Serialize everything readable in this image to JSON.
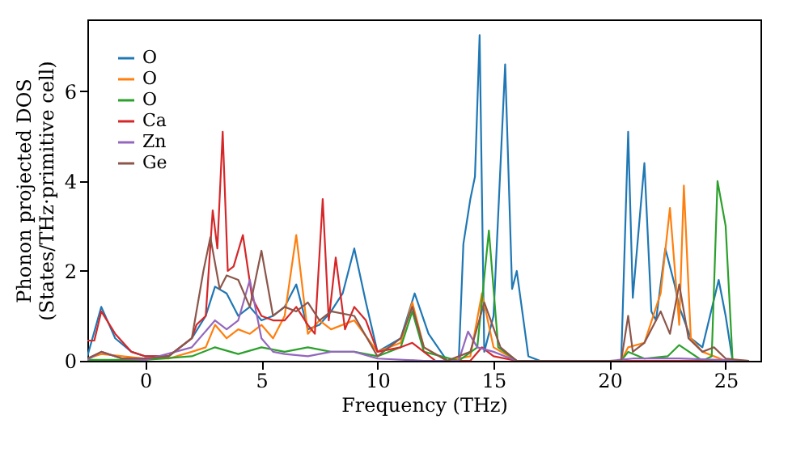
{
  "chart_data": {
    "type": "line",
    "xlabel": "Frequency (THz)",
    "ylabel": "Phonon projected DOS\n(States/THz·primitive cell)",
    "xlim": [
      -2.5,
      26.5
    ],
    "ylim": [
      0,
      7.6
    ],
    "xticks": [
      0,
      5,
      10,
      15,
      20,
      25
    ],
    "yticks": [
      0,
      2,
      4,
      6
    ],
    "legend": "top left",
    "grid": false,
    "series": [
      {
        "name": "O",
        "color": "#1f77b4",
        "x": [
          -2.5,
          -1.9,
          -1.3,
          -0.6,
          0,
          1,
          2,
          2.6,
          3,
          3.5,
          4,
          4.5,
          5,
          5.5,
          6,
          6.5,
          7,
          7.5,
          8,
          8.5,
          9,
          9.5,
          10,
          11,
          11.6,
          12.2,
          13,
          13.5,
          13.7,
          14,
          14.2,
          14.4,
          14.6,
          15,
          15.5,
          15.8,
          16,
          16.5,
          17,
          20.5,
          20.8,
          21,
          21.5,
          21.8,
          22,
          22.4,
          22.8,
          23,
          23.5,
          24,
          24.7,
          25,
          25.3,
          26
        ],
        "values": [
          0.1,
          1.2,
          0.5,
          0.2,
          0.1,
          0.1,
          0.5,
          1.0,
          1.65,
          1.5,
          1.0,
          1.2,
          0.9,
          1.0,
          1.2,
          1.7,
          0.7,
          0.8,
          1.1,
          1.5,
          2.5,
          1.3,
          0.2,
          0.5,
          1.5,
          0.6,
          0,
          0,
          2.6,
          3.6,
          4.1,
          7.25,
          0.2,
          1.0,
          6.6,
          1.6,
          2.0,
          0.1,
          0,
          0,
          5.1,
          1.4,
          4.4,
          1.1,
          0.9,
          2.5,
          1.7,
          1.2,
          0.5,
          0.3,
          1.8,
          1.0,
          0,
          0
        ]
      },
      {
        "name": "O",
        "color": "#ff7f0e",
        "x": [
          -2.5,
          -1.9,
          0,
          1,
          2,
          2.6,
          3,
          3.5,
          4,
          4.5,
          5,
          5.5,
          6,
          6.5,
          7,
          7.5,
          8,
          9,
          10,
          11,
          11.5,
          12,
          13,
          14,
          14.5,
          15,
          16,
          20.5,
          20.8,
          21.5,
          22.2,
          22.6,
          23,
          23.2,
          23.5,
          24,
          25,
          26
        ],
        "values": [
          0.05,
          0.15,
          0.05,
          0.05,
          0.2,
          0.3,
          0.8,
          0.5,
          0.7,
          0.6,
          0.8,
          0.5,
          1.0,
          2.8,
          0.6,
          0.9,
          0.7,
          0.9,
          0.2,
          0.4,
          1.3,
          0.3,
          0,
          0.1,
          1.5,
          0.3,
          0,
          0,
          0.3,
          0.4,
          1.5,
          3.4,
          0.8,
          3.9,
          0.5,
          0.2,
          0,
          0
        ]
      },
      {
        "name": "O",
        "color": "#2ca02c",
        "x": [
          -2.5,
          0,
          2,
          3,
          4,
          5,
          6,
          7,
          8,
          9,
          10,
          11,
          11.5,
          12,
          13.5,
          14.3,
          14.8,
          15.2,
          16,
          20.5,
          20.8,
          21.5,
          22.5,
          23,
          24,
          24.4,
          24.65,
          25,
          25.3,
          26
        ],
        "values": [
          0.02,
          0.02,
          0.1,
          0.3,
          0.15,
          0.3,
          0.2,
          0.3,
          0.2,
          0.2,
          0.1,
          0.3,
          1.1,
          0.2,
          0,
          0.3,
          2.9,
          0.3,
          0,
          0,
          0.2,
          0.05,
          0.1,
          0.35,
          0,
          0.1,
          4.0,
          3.0,
          0,
          0
        ]
      },
      {
        "name": "Ca",
        "color": "#d62728",
        "x": [
          -2.5,
          -2.2,
          -1.9,
          -1.3,
          -0.6,
          0,
          1,
          2,
          2.2,
          2.6,
          2.9,
          3.1,
          3.33,
          3.55,
          3.8,
          4.2,
          4.6,
          5,
          5.5,
          6,
          6.5,
          7,
          7.3,
          7.64,
          7.9,
          8.2,
          8.6,
          9,
          9.5,
          10,
          11,
          11.5,
          12.5,
          14,
          14.5,
          15,
          16,
          26
        ],
        "values": [
          0.45,
          0.45,
          1.1,
          0.6,
          0.2,
          0.1,
          0.1,
          0.5,
          0.8,
          1.0,
          3.35,
          2.5,
          5.1,
          2.0,
          2.1,
          2.8,
          1.4,
          1.0,
          0.9,
          0.9,
          1.2,
          0.8,
          0.6,
          3.6,
          0.9,
          2.3,
          0.7,
          1.2,
          0.9,
          0.2,
          0.3,
          0.4,
          0,
          0,
          0.3,
          0.1,
          0,
          0
        ]
      },
      {
        "name": "Zn",
        "color": "#9467bd",
        "x": [
          -2.5,
          -1.9,
          -1,
          0,
          2,
          3,
          3.5,
          4,
          4.5,
          5,
          5.5,
          6,
          7,
          8,
          9,
          10,
          12,
          13.5,
          13.9,
          14.3,
          15,
          15.5,
          16,
          20,
          21,
          23,
          26
        ],
        "values": [
          0.02,
          0.2,
          0.05,
          0.02,
          0.3,
          0.9,
          0.7,
          0.9,
          1.8,
          0.5,
          0.2,
          0.15,
          0.1,
          0.2,
          0.2,
          0.05,
          0,
          0,
          0.65,
          0.3,
          0.2,
          0.1,
          0,
          0,
          0.05,
          0.05,
          0
        ]
      },
      {
        "name": "Ge",
        "color": "#8c564b",
        "x": [
          -2.5,
          -1.9,
          -1,
          0,
          1,
          2,
          2.5,
          2.8,
          3.2,
          3.5,
          4,
          4.5,
          5,
          5.5,
          6,
          6.5,
          7,
          7.5,
          8,
          9,
          10,
          11,
          11.5,
          12,
          13,
          14,
          14.6,
          15.3,
          16,
          20.5,
          20.8,
          21,
          21.5,
          22.2,
          22.6,
          23,
          23.4,
          24,
          24.5,
          25,
          26
        ],
        "values": [
          0.05,
          0.2,
          0.05,
          0.05,
          0.1,
          0.5,
          2.0,
          2.75,
          1.6,
          1.9,
          1.8,
          1.2,
          2.45,
          1.0,
          1.2,
          1.1,
          1.3,
          0.9,
          1.1,
          1.0,
          0.1,
          0.5,
          1.2,
          0.3,
          0,
          0.2,
          1.3,
          0.3,
          0,
          0,
          1.0,
          0.2,
          0.4,
          1.1,
          0.6,
          1.7,
          0.5,
          0.2,
          0.3,
          0.05,
          0
        ]
      }
    ]
  }
}
